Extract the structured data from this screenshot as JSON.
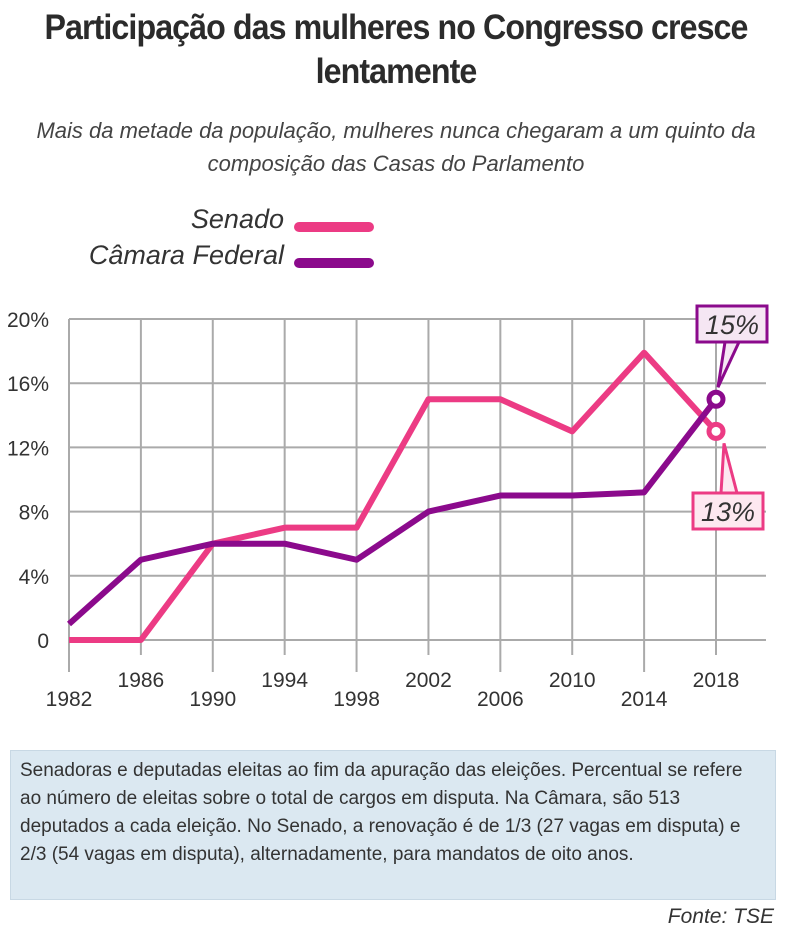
{
  "title": "Participação das mulheres no Congresso cresce lentamente",
  "subtitle": "Mais da metade da população, mulheres nunca chegaram a um quinto da composição das Casas do Parlamento",
  "note": "Senadoras e deputadas eleitas ao fim da apuração das eleições. Percentual se refere ao número de eleitas sobre o total de cargos em disputa. Na Câmara, são 513 deputados a cada eleição. No Senado, a renovação é de 1/3 (27 vagas em disputa) e 2/3 (54 vagas em disputa), alternadamente, para mandatos de oito anos.",
  "source": "Fonte: TSE",
  "chart_data": {
    "type": "line",
    "x": [
      1982,
      1986,
      1990,
      1994,
      1998,
      2002,
      2006,
      2010,
      2014,
      2018
    ],
    "ylim": [
      0,
      20
    ],
    "yticks": [
      "0",
      "4%",
      "8%",
      "12%",
      "16%",
      "20%"
    ],
    "ytick_values": [
      0,
      4,
      8,
      12,
      16,
      20
    ],
    "grid": true,
    "legend_position": "top-left",
    "series": [
      {
        "name": "Senado",
        "color": "#ec3b84",
        "values": [
          0,
          0,
          6,
          7,
          7,
          15,
          15,
          13,
          17.9,
          13
        ],
        "end_label": "13%"
      },
      {
        "name": "Câmara Federal",
        "color": "#8b0a8c",
        "values": [
          1,
          5,
          6,
          6,
          5,
          8,
          9,
          9,
          9.2,
          15
        ],
        "end_label": "15%"
      }
    ]
  }
}
